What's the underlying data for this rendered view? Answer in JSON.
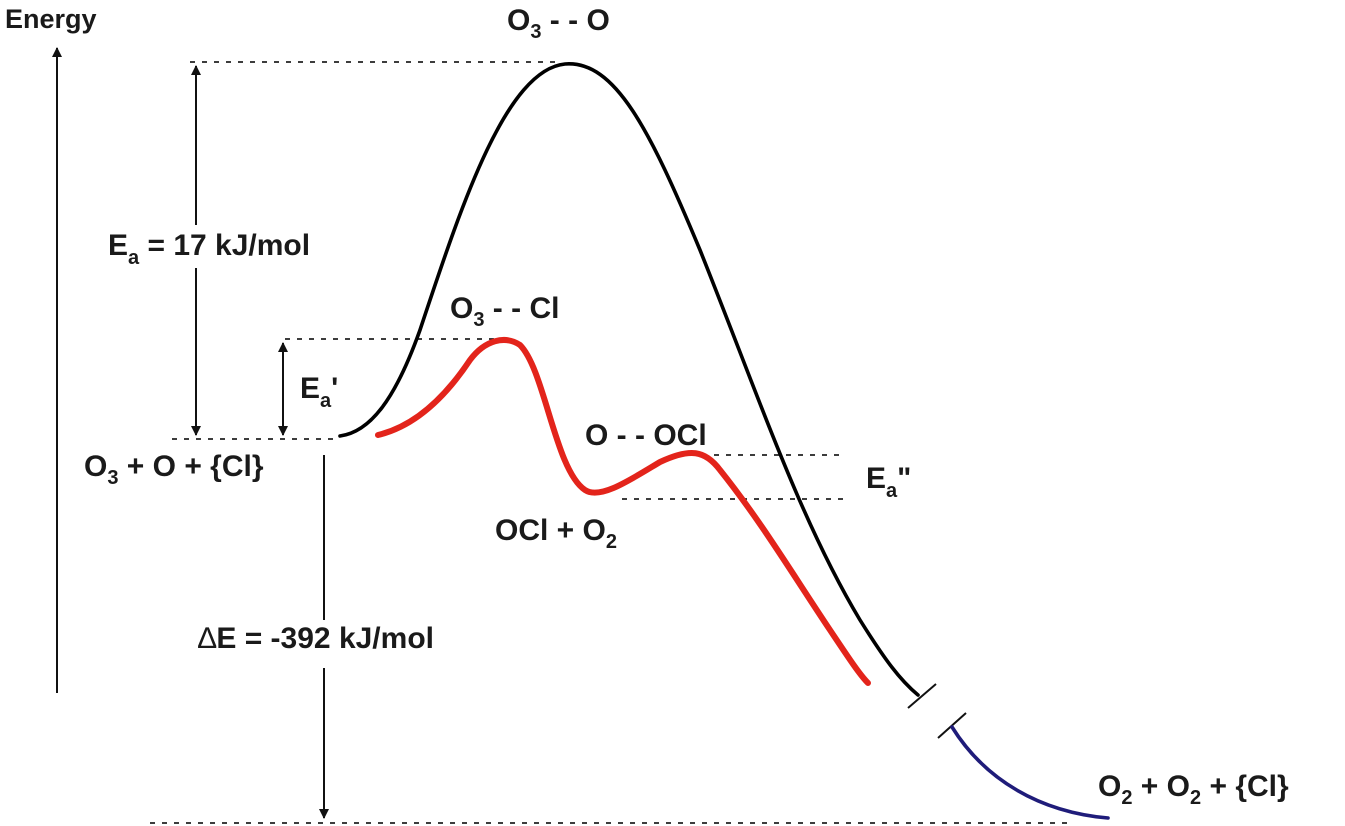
{
  "axis": {
    "label": "Energy"
  },
  "labels": {
    "ts_uncat_base": "O",
    "ts_uncat_sub": "3",
    "ts_uncat_rest": " - - O",
    "ts_cat1_base": "O",
    "ts_cat1_sub": "3",
    "ts_cat1_rest": " - - Cl",
    "ts_cat2": "O - - OCl",
    "intermediate_base": "OCl + O",
    "intermediate_sub": "2",
    "reactants_base": "O",
    "reactants_sub": "3",
    "reactants_rest": " + O + {Cl}",
    "products_base1": "O",
    "products_sub1": "2",
    "products_mid": " + O",
    "products_sub2": "2",
    "products_rest": " + {Cl}"
  },
  "energies": {
    "ea_base": "E",
    "ea_sub": "a",
    "ea_value": " = 17 kJ/mol",
    "ea1_base": "E",
    "ea1_sub": "a",
    "ea1_mark": "'",
    "ea2_base": "E",
    "ea2_sub": "a",
    "ea2_mark": "\"",
    "de_symbol": "∆",
    "de_text": "E = -392 kJ/mol"
  },
  "colors": {
    "uncatalyzed": "#000000",
    "catalyzed": "#e3241b",
    "product_tail": "#1f1c7a",
    "text": "#1a1a1a"
  }
}
